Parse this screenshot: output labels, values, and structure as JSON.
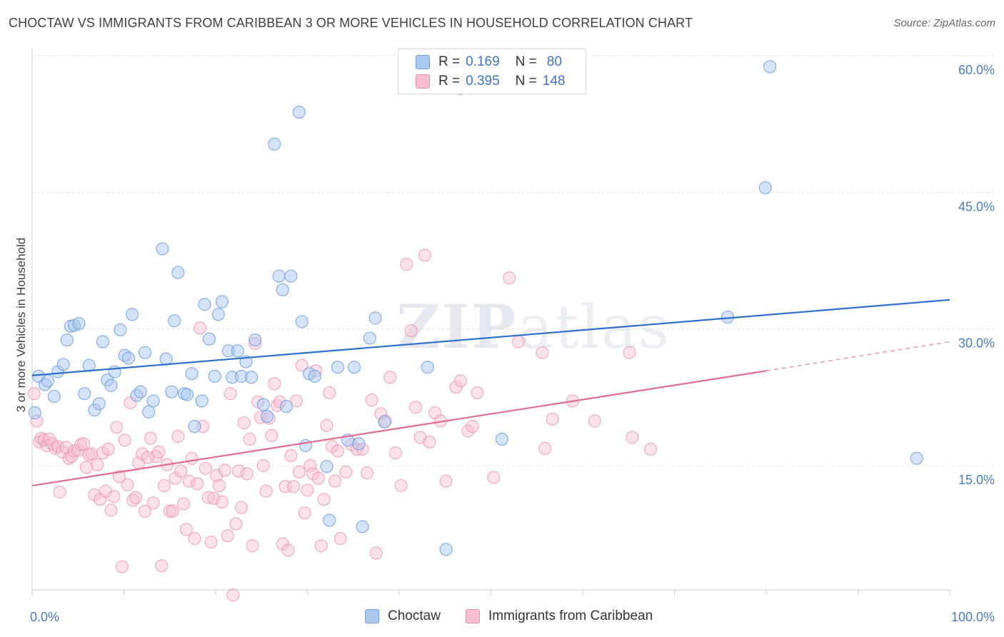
{
  "title": "CHOCTAW VS IMMIGRANTS FROM CARIBBEAN 3 OR MORE VEHICLES IN HOUSEHOLD CORRELATION CHART",
  "source": "Source: ZipAtlas.com",
  "watermark": {
    "zip": "ZIP",
    "atlas": "atlas"
  },
  "legend": {
    "rows": [
      {
        "r_label": "R =",
        "r_value": "0.169",
        "n_label": "N =",
        "n_value": "80"
      },
      {
        "r_label": "R =",
        "r_value": "0.395",
        "n_label": "N =",
        "n_value": "148"
      }
    ]
  },
  "bottom_legend": [
    "Choctaw",
    "Immigrants from Caribbean"
  ],
  "colors": {
    "choctaw_fill": "#aac8f0",
    "choctaw_stroke": "#6f9fdc",
    "choctaw_line": "#2f6fcf",
    "carib_fill": "#f6bcd0",
    "carib_stroke": "#ec8fb0",
    "carib_line": "#e06c94",
    "tick_text": "#4a7cc9",
    "grid": "#dddddd"
  },
  "chart_data": {
    "type": "scatter",
    "title": "CHOCTAW VS IMMIGRANTS FROM CARIBBEAN 3 OR MORE VEHICLES IN HOUSEHOLD CORRELATION CHART",
    "xlabel": "",
    "ylabel": "3 or more Vehicles in Household",
    "xlim": [
      0,
      100
    ],
    "ylim": [
      0,
      64
    ],
    "x_tick_labels": [
      "0.0%",
      "100.0%"
    ],
    "y_ticks": [
      15,
      30,
      45,
      60
    ],
    "y_tick_labels": [
      "15.0%",
      "30.0%",
      "45.0%",
      "60.0%"
    ],
    "grid": true,
    "legend_position": "top-center",
    "series": [
      {
        "name": "Choctaw",
        "r": 0.169,
        "n": 80,
        "trend": {
          "x": [
            0,
            100
          ],
          "y": [
            24.9,
            33.2
          ]
        },
        "points": [
          [
            0.3,
            20.8
          ],
          [
            0.7,
            24.8
          ],
          [
            1.4,
            23.9
          ],
          [
            1.7,
            24.3
          ],
          [
            2.4,
            22.6
          ],
          [
            2.8,
            25.3
          ],
          [
            3.4,
            26.1
          ],
          [
            3.8,
            28.8
          ],
          [
            4.2,
            30.3
          ],
          [
            4.6,
            30.4
          ],
          [
            5.1,
            30.6
          ],
          [
            5.7,
            22.9
          ],
          [
            6.2,
            26.0
          ],
          [
            6.8,
            21.1
          ],
          [
            7.3,
            21.8
          ],
          [
            7.7,
            28.6
          ],
          [
            8.2,
            24.4
          ],
          [
            8.6,
            23.8
          ],
          [
            9.0,
            25.3
          ],
          [
            9.6,
            29.9
          ],
          [
            10.1,
            27.1
          ],
          [
            10.5,
            26.8
          ],
          [
            10.9,
            31.6
          ],
          [
            11.4,
            22.7
          ],
          [
            11.8,
            23.1
          ],
          [
            12.3,
            27.4
          ],
          [
            12.7,
            20.9
          ],
          [
            13.2,
            22.1
          ],
          [
            14.2,
            38.8
          ],
          [
            14.6,
            26.7
          ],
          [
            15.2,
            23.1
          ],
          [
            15.5,
            30.9
          ],
          [
            15.9,
            36.2
          ],
          [
            16.6,
            22.9
          ],
          [
            16.9,
            22.8
          ],
          [
            17.4,
            25.1
          ],
          [
            17.7,
            19.3
          ],
          [
            18.5,
            22.1
          ],
          [
            18.8,
            32.7
          ],
          [
            19.3,
            28.9
          ],
          [
            19.9,
            24.8
          ],
          [
            20.3,
            31.6
          ],
          [
            20.7,
            33.0
          ],
          [
            21.4,
            27.6
          ],
          [
            21.8,
            24.7
          ],
          [
            22.4,
            27.6
          ],
          [
            22.8,
            24.8
          ],
          [
            23.3,
            26.4
          ],
          [
            23.9,
            24.7
          ],
          [
            24.3,
            28.8
          ],
          [
            25.2,
            21.7
          ],
          [
            25.6,
            20.4
          ],
          [
            26.4,
            50.3
          ],
          [
            26.9,
            35.8
          ],
          [
            27.3,
            34.3
          ],
          [
            27.7,
            21.5
          ],
          [
            28.2,
            35.8
          ],
          [
            29.1,
            53.8
          ],
          [
            29.4,
            30.8
          ],
          [
            29.8,
            17.2
          ],
          [
            30.2,
            25.1
          ],
          [
            30.8,
            24.8
          ],
          [
            32.1,
            14.9
          ],
          [
            32.4,
            9.0
          ],
          [
            33.3,
            25.8
          ],
          [
            34.4,
            17.8
          ],
          [
            35.1,
            25.8
          ],
          [
            35.6,
            17.4
          ],
          [
            36.0,
            8.3
          ],
          [
            36.8,
            29.0
          ],
          [
            37.4,
            31.2
          ],
          [
            38.4,
            19.8
          ],
          [
            43.1,
            25.8
          ],
          [
            45.1,
            5.8
          ],
          [
            46.7,
            56.4
          ],
          [
            51.2,
            17.9
          ],
          [
            75.8,
            31.3
          ],
          [
            79.9,
            45.5
          ],
          [
            80.4,
            58.8
          ],
          [
            96.4,
            15.8
          ]
        ]
      },
      {
        "name": "Immigrants from Caribbean",
        "r": 0.395,
        "n": 148,
        "trend": {
          "x": [
            0,
            80
          ],
          "y": [
            12.8,
            25.4
          ]
        },
        "trend_dashed": {
          "x": [
            80,
            100
          ],
          "y": [
            25.4,
            28.6
          ]
        },
        "points": [
          [
            0.2,
            22.9
          ],
          [
            0.5,
            19.9
          ],
          [
            0.8,
            17.6
          ],
          [
            1.0,
            18.0
          ],
          [
            1.3,
            17.8
          ],
          [
            1.6,
            17.2
          ],
          [
            1.9,
            17.9
          ],
          [
            2.2,
            17.4
          ],
          [
            2.5,
            16.9
          ],
          [
            2.8,
            17.1
          ],
          [
            3.0,
            12.1
          ],
          [
            3.3,
            16.5
          ],
          [
            3.7,
            17.0
          ],
          [
            4.0,
            15.8
          ],
          [
            4.3,
            16.0
          ],
          [
            4.6,
            16.6
          ],
          [
            5.0,
            16.7
          ],
          [
            5.3,
            17.3
          ],
          [
            5.6,
            17.4
          ],
          [
            5.9,
            14.8
          ],
          [
            6.2,
            16.2
          ],
          [
            6.5,
            16.3
          ],
          [
            6.8,
            11.8
          ],
          [
            7.1,
            15.1
          ],
          [
            7.4,
            11.3
          ],
          [
            7.7,
            16.4
          ],
          [
            8.0,
            12.2
          ],
          [
            8.3,
            16.8
          ],
          [
            8.6,
            10.1
          ],
          [
            8.9,
            11.6
          ],
          [
            9.2,
            19.2
          ],
          [
            9.5,
            13.8
          ],
          [
            9.8,
            3.9
          ],
          [
            10.1,
            17.8
          ],
          [
            10.4,
            12.9
          ],
          [
            10.7,
            21.9
          ],
          [
            11.0,
            11.2
          ],
          [
            11.3,
            11.5
          ],
          [
            11.6,
            15.3
          ],
          [
            12.0,
            16.3
          ],
          [
            12.3,
            10.0
          ],
          [
            12.6,
            15.9
          ],
          [
            12.9,
            18.0
          ],
          [
            13.2,
            10.9
          ],
          [
            13.5,
            16.0
          ],
          [
            13.8,
            16.5
          ],
          [
            14.1,
            4.0
          ],
          [
            14.4,
            12.8
          ],
          [
            14.7,
            15.1
          ],
          [
            15.0,
            10.0
          ],
          [
            15.3,
            10.0
          ],
          [
            15.6,
            13.6
          ],
          [
            15.9,
            18.2
          ],
          [
            16.2,
            14.4
          ],
          [
            16.5,
            10.8
          ],
          [
            16.8,
            8.0
          ],
          [
            17.1,
            13.3
          ],
          [
            17.4,
            15.8
          ],
          [
            17.7,
            7.0
          ],
          [
            18.0,
            13.0
          ],
          [
            18.3,
            30.1
          ],
          [
            18.6,
            19.3
          ],
          [
            18.9,
            14.7
          ],
          [
            19.2,
            11.5
          ],
          [
            19.5,
            6.6
          ],
          [
            19.8,
            11.4
          ],
          [
            20.1,
            13.9
          ],
          [
            20.4,
            12.8
          ],
          [
            20.7,
            11.0
          ],
          [
            21.0,
            14.5
          ],
          [
            21.3,
            7.3
          ],
          [
            21.6,
            22.9
          ],
          [
            21.9,
            0.8
          ],
          [
            22.2,
            8.6
          ],
          [
            22.5,
            14.4
          ],
          [
            22.8,
            10.4
          ],
          [
            23.1,
            19.7
          ],
          [
            23.4,
            14.1
          ],
          [
            23.7,
            17.9
          ],
          [
            24.0,
            6.2
          ],
          [
            24.3,
            28.4
          ],
          [
            24.6,
            22.0
          ],
          [
            24.9,
            20.3
          ],
          [
            25.2,
            15.0
          ],
          [
            25.5,
            12.2
          ],
          [
            25.8,
            20.2
          ],
          [
            26.1,
            18.3
          ],
          [
            26.4,
            24.0
          ],
          [
            26.7,
            21.6
          ],
          [
            27.0,
            22.0
          ],
          [
            27.3,
            6.4
          ],
          [
            27.6,
            12.7
          ],
          [
            27.9,
            5.7
          ],
          [
            28.2,
            16.1
          ],
          [
            28.5,
            12.7
          ],
          [
            28.8,
            22.1
          ],
          [
            29.1,
            14.3
          ],
          [
            29.4,
            26.0
          ],
          [
            29.7,
            9.8
          ],
          [
            30.0,
            12.3
          ],
          [
            30.3,
            15.0
          ],
          [
            30.6,
            14.1
          ],
          [
            30.9,
            25.4
          ],
          [
            31.2,
            13.6
          ],
          [
            31.5,
            6.2
          ],
          [
            31.8,
            11.3
          ],
          [
            32.1,
            19.4
          ],
          [
            32.4,
            23.0
          ],
          [
            32.7,
            17.1
          ],
          [
            33.0,
            13.3
          ],
          [
            33.3,
            16.6
          ],
          [
            33.6,
            7.0
          ],
          [
            34.2,
            14.3
          ],
          [
            34.8,
            17.3
          ],
          [
            35.4,
            16.8
          ],
          [
            36.0,
            16.8
          ],
          [
            36.5,
            14.2
          ],
          [
            37.0,
            22.2
          ],
          [
            37.5,
            5.4
          ],
          [
            38.0,
            20.7
          ],
          [
            38.5,
            19.9
          ],
          [
            39.0,
            24.7
          ],
          [
            39.6,
            16.4
          ],
          [
            40.2,
            12.8
          ],
          [
            40.8,
            37.1
          ],
          [
            41.3,
            29.8
          ],
          [
            41.8,
            21.4
          ],
          [
            42.3,
            18.1
          ],
          [
            42.8,
            38.1
          ],
          [
            43.3,
            17.6
          ],
          [
            43.9,
            20.8
          ],
          [
            44.5,
            19.9
          ],
          [
            45.1,
            13.3
          ],
          [
            46.2,
            23.6
          ],
          [
            46.7,
            24.3
          ],
          [
            47.5,
            18.8
          ],
          [
            48.0,
            19.3
          ],
          [
            48.5,
            23.0
          ],
          [
            50.3,
            13.7
          ],
          [
            52.0,
            35.6
          ],
          [
            53.0,
            28.6
          ],
          [
            55.6,
            27.4
          ],
          [
            55.9,
            16.9
          ],
          [
            56.7,
            20.1
          ],
          [
            58.9,
            22.1
          ],
          [
            61.3,
            19.9
          ],
          [
            65.1,
            27.4
          ],
          [
            65.4,
            18.1
          ],
          [
            67.4,
            16.8
          ]
        ]
      }
    ]
  }
}
